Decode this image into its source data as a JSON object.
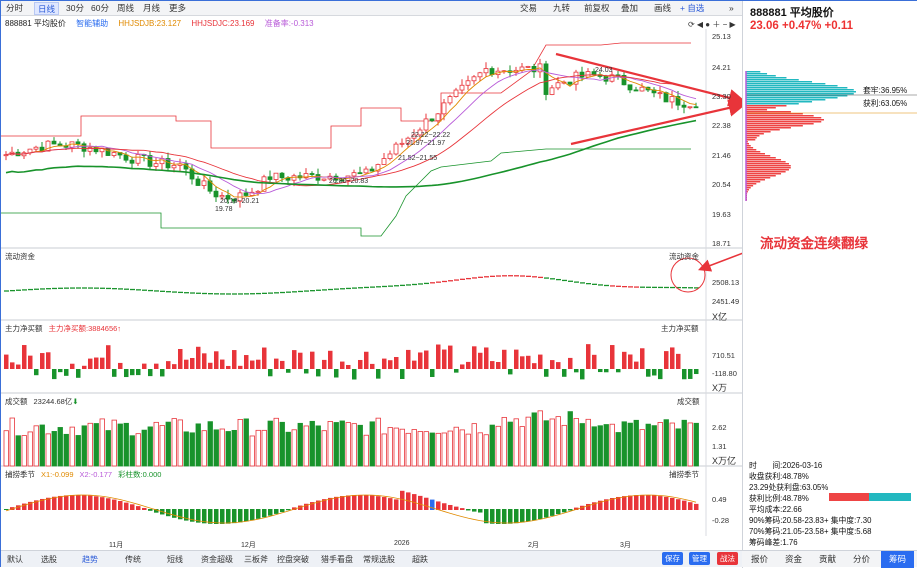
{
  "toolbar": {
    "items": [
      "分时",
      "日线",
      "30分",
      "60分",
      "周线",
      "月线",
      "更多"
    ],
    "active": "日线",
    "right": [
      "交易",
      "九转",
      "前复权",
      "叠加",
      "画线",
      "+ 自选"
    ]
  },
  "infoline": {
    "name": "888881 平均股价",
    "smart": "智能辅助",
    "hhjsdjb": "HHJSDJB:23.127",
    "hhjsdjc": "HHJSDJC:23.169",
    "prep": "准备率:-0.313"
  },
  "price_axis": [
    "25.13",
    "24.21",
    "23.30",
    "22.38",
    "21.46",
    "20.54",
    "19.63",
    "18.71"
  ],
  "annotations": {
    "a1": "24.03",
    "a2": "22.22~22.22",
    "a3": "21.97~21.97",
    "a4": "21.52~21.55",
    "a5": "20.80~20.83",
    "a6": "20.18~20.21",
    "a7": "19.78"
  },
  "panels": {
    "flow": {
      "title": "流动资金",
      "title_r": "流动资金",
      "ticks": [
        "2508.13",
        "2451.49"
      ],
      "unit": "X亿"
    },
    "net": {
      "title": "主力净买额",
      "value": "主力净买额:3884656",
      "title_r": "主力净买额",
      "ticks": [
        "710.51",
        "-118.80"
      ],
      "unit": "X万"
    },
    "vol": {
      "title": "成交额",
      "value": "23244.68亿",
      "title_r": "成交额",
      "ticks": [
        "2.62",
        "1.31"
      ],
      "unit": "X万亿"
    },
    "season": {
      "title": "捕捞季节",
      "x1": "X1:-0.099",
      "x2": "X2:-0.177",
      "col": "彩柱数:0.000",
      "title_r": "捕捞季节",
      "ticks": [
        "0.49",
        "-0.28"
      ]
    }
  },
  "xaxis": [
    "11月",
    "12月",
    "2026",
    "2月",
    "3月"
  ],
  "callout": "流动资金连续翻绿",
  "right_panel": {
    "title": "888881 平均股价",
    "price": "23.06",
    "change_pct": "+0.47%",
    "change": "+0.11",
    "profit_label1": "套牢:36.95%",
    "profit_label2": "获利:63.05%",
    "info": [
      "时　　间:2026-03-16",
      "收盘获利:48.78%",
      "23.29处获利盘:63.05%",
      "获利比例:48.78%",
      "平均成本:22.66",
      "90%筹码:20.58-23.83+ 集中度:7.30",
      "70%筹码:21.05-23.58+ 集中度:5.68",
      "筹码峰差:1.76"
    ],
    "tabs": [
      "报价",
      "资金",
      "贡献",
      "分价",
      "筹码"
    ],
    "active_tab": "筹码",
    "chip_ratio": 0.4878
  },
  "bottombar": {
    "items": [
      "默认",
      "选股",
      "趋势",
      "传统",
      "短线",
      "资金超级",
      "三板斧",
      "控盘突破",
      "猎手看盘",
      "常规选股",
      "超跌"
    ],
    "active": "趋势",
    "buttons": [
      "保存",
      "管理",
      "战法"
    ]
  },
  "colors": {
    "up": "#e8343a",
    "down": "#18932b",
    "accent": "#2a6cf0"
  }
}
